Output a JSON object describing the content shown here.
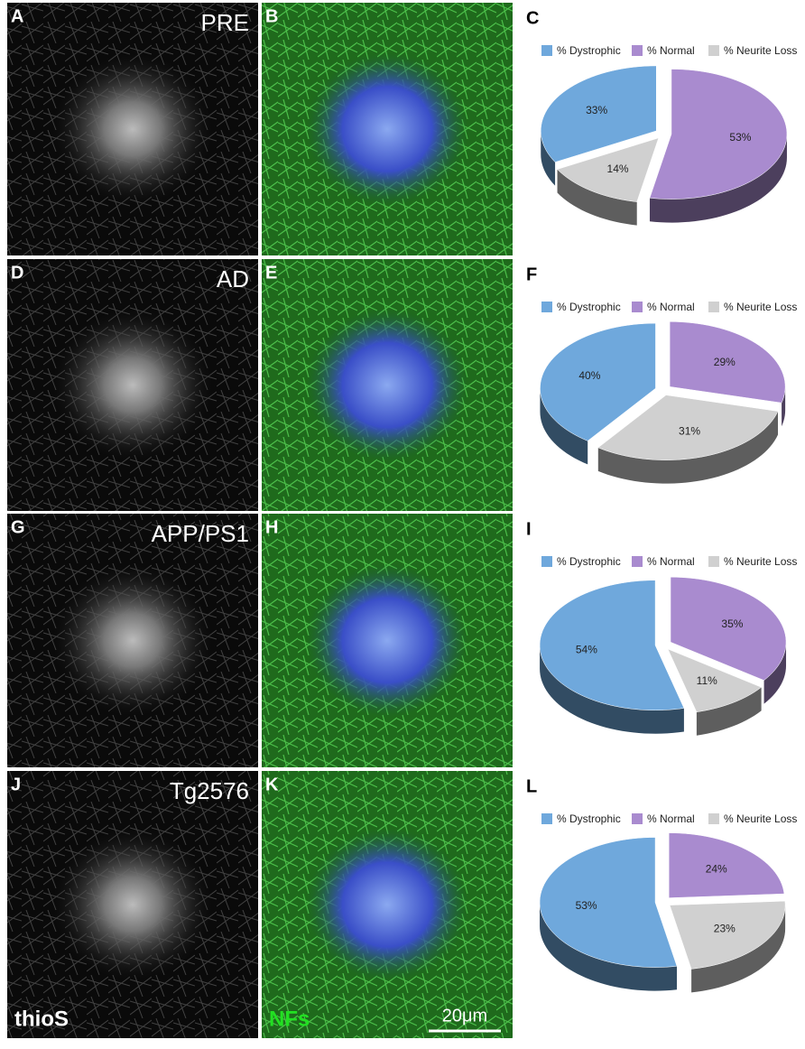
{
  "chart_data": [
    {
      "type": "pie",
      "panel": "C",
      "categories": [
        "% Dystrophic",
        "% Normal",
        "% Neurite Loss"
      ],
      "values": [
        33,
        53,
        14
      ],
      "value_labels": [
        "33%",
        "53%",
        "14%"
      ],
      "colors": [
        "#6fa8dc",
        "#a98bcf",
        "#d0d0d0"
      ]
    },
    {
      "type": "pie",
      "panel": "F",
      "categories": [
        "% Dystrophic",
        "% Normal",
        "% Neurite Loss"
      ],
      "values": [
        40,
        29,
        31
      ],
      "value_labels": [
        "40%",
        "29%",
        "31%"
      ],
      "colors": [
        "#6fa8dc",
        "#a98bcf",
        "#d0d0d0"
      ]
    },
    {
      "type": "pie",
      "panel": "I",
      "categories": [
        "% Dystrophic",
        "% Normal",
        "% Neurite Loss"
      ],
      "values": [
        54,
        35,
        11
      ],
      "value_labels": [
        "54%",
        "35%",
        "11%"
      ],
      "colors": [
        "#6fa8dc",
        "#a98bcf",
        "#d0d0d0"
      ]
    },
    {
      "type": "pie",
      "panel": "L",
      "categories": [
        "% Dystrophic",
        "% Normal",
        "% Neurite Loss"
      ],
      "values": [
        53,
        24,
        23
      ],
      "value_labels": [
        "53%",
        "24%",
        "23%"
      ],
      "colors": [
        "#6fa8dc",
        "#a98bcf",
        "#d0d0d0"
      ]
    }
  ],
  "image_panels": [
    {
      "panel": "A",
      "label": "PRE"
    },
    {
      "panel": "B"
    },
    {
      "panel": "D",
      "label": "AD"
    },
    {
      "panel": "E"
    },
    {
      "panel": "G",
      "label": "APP/PS1"
    },
    {
      "panel": "H"
    },
    {
      "panel": "J",
      "label": "Tg2576",
      "stain": "thioS"
    },
    {
      "panel": "K",
      "stain": "NFs",
      "scale_bar": "20μm"
    }
  ]
}
